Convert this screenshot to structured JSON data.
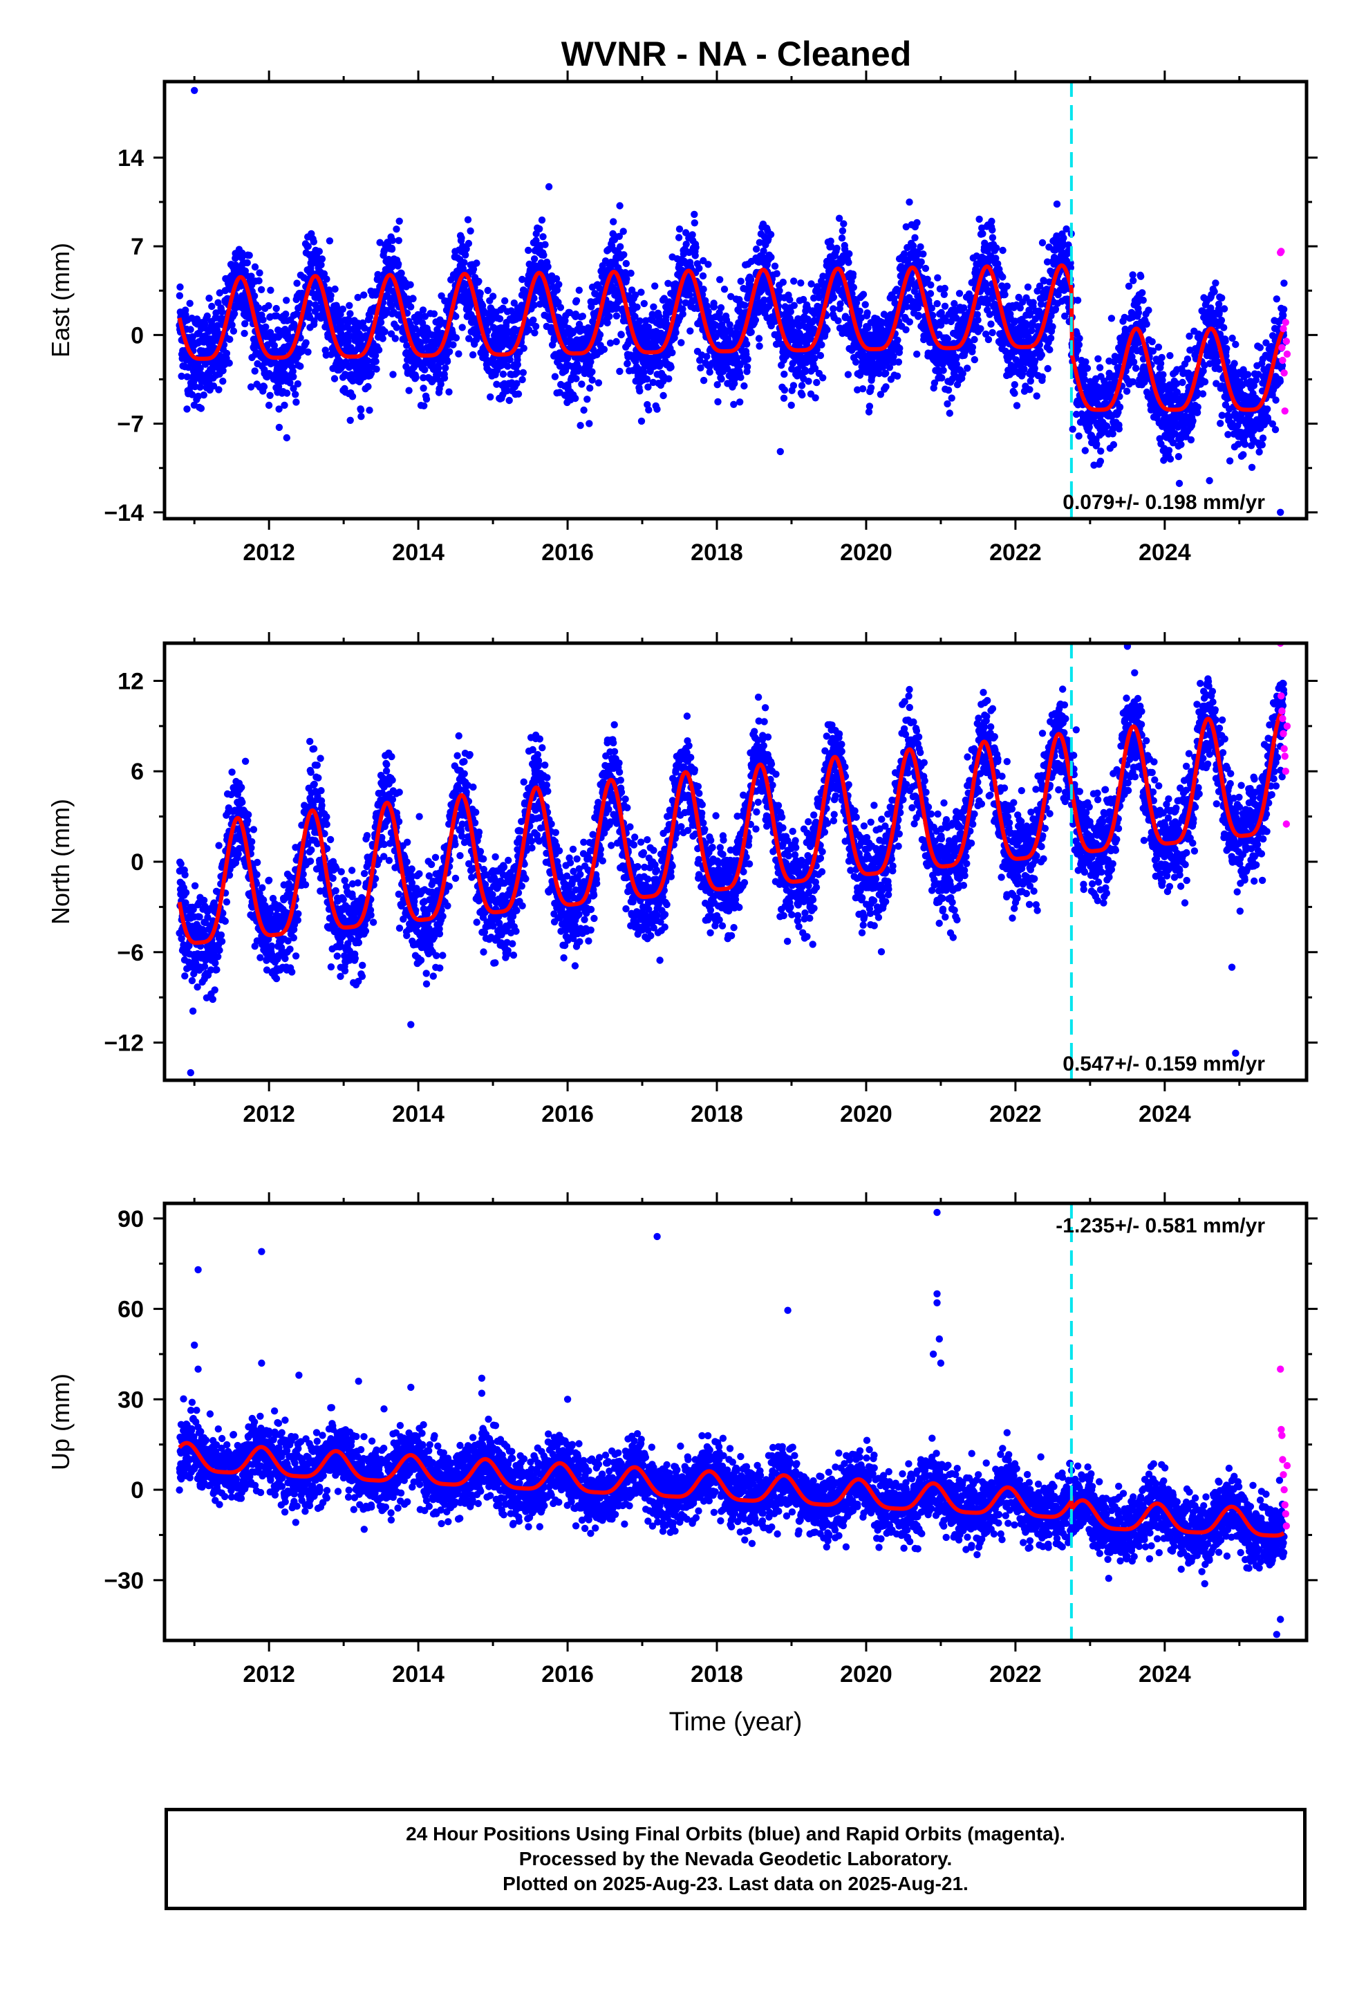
{
  "title": "WVNR  - NA - Cleaned",
  "colors": {
    "final_points": "#0000ff",
    "rapid_points": "#ff00ff",
    "model_line": "#ff0000",
    "break_line": "#00e5ee",
    "frame": "#000000"
  },
  "chart_data": [
    {
      "type": "scatter",
      "panel": "east",
      "ylabel": "East (mm)",
      "xlabel": "",
      "xlim": [
        2010.6,
        2025.9
      ],
      "ylim": [
        -14.5,
        20
      ],
      "x_ticks": [
        "2012",
        "2014",
        "2016",
        "2018",
        "2020",
        "2022",
        "2024"
      ],
      "y_ticks": [
        "14",
        "7",
        "0",
        "-7",
        "-14"
      ],
      "y_tick_values": [
        14,
        7,
        0,
        -7,
        -14
      ],
      "rate_label": "0.079+/- 0.198 mm/yr",
      "rate_label_position": "bottom-right",
      "break_epoch": 2022.75,
      "series": [
        {
          "name": "Final Orbits (blue)",
          "trend": [
            [
              2010.8,
              0.5
            ],
            [
              2022.75,
              1.5
            ],
            [
              2022.76,
              -3.5
            ],
            [
              2025.6,
              -3.5
            ]
          ],
          "seasonal_amplitude": 3.2,
          "seasonal_peak_fraction": 0.62,
          "scatter_sd": 1.9
        },
        {
          "name": "Rapid Orbits (magenta)",
          "x_range": [
            2025.55,
            2025.64
          ],
          "values": [
            6.5,
            6.6,
            -1.0,
            -2.0,
            0.5,
            -3.0,
            -6.0,
            1.0,
            -0.5,
            -1.5
          ]
        }
      ],
      "outliers": [
        [
          2011.0,
          19.3
        ],
        [
          2015.75,
          11.7
        ],
        [
          2016.7,
          10.2
        ],
        [
          2018.85,
          -9.2
        ],
        [
          2024.6,
          -11.5
        ],
        [
          2025.55,
          -14.0
        ]
      ]
    },
    {
      "type": "scatter",
      "panel": "north",
      "ylabel": "North (mm)",
      "xlabel": "",
      "xlim": [
        2010.6,
        2025.9
      ],
      "ylim": [
        -14.5,
        14.5
      ],
      "x_ticks": [
        "2012",
        "2014",
        "2016",
        "2018",
        "2020",
        "2022",
        "2024"
      ],
      "y_ticks": [
        "12",
        "6",
        "0",
        "-6",
        "-12"
      ],
      "y_tick_values": [
        12,
        6,
        0,
        -6,
        -12
      ],
      "rate_label": "0.547+/- 0.159 mm/yr",
      "rate_label_position": "bottom-right",
      "break_epoch": 2022.75,
      "series": [
        {
          "name": "Final Orbits (blue)",
          "trend": [
            [
              2010.8,
              -2.5
            ],
            [
              2025.6,
              5.0
            ]
          ],
          "seasonal_amplitude": 4.0,
          "seasonal_peak_fraction": 0.58,
          "scatter_sd": 1.6
        },
        {
          "name": "Rapid Orbits (magenta)",
          "x_range": [
            2025.55,
            2025.64
          ],
          "values": [
            14.5,
            11.0,
            10.0,
            9.5,
            8.5,
            7.5,
            7.0,
            6.0,
            2.5,
            9.0
          ]
        }
      ],
      "outliers": [
        [
          2010.95,
          -14.0
        ],
        [
          2013.9,
          -10.8
        ],
        [
          2023.5,
          14.3
        ],
        [
          2024.95,
          -12.7
        ],
        [
          2024.9,
          -7.0
        ]
      ]
    },
    {
      "type": "scatter",
      "panel": "up",
      "ylabel": "Up (mm)",
      "xlabel": "Time (year)",
      "xlim": [
        2010.6,
        2025.9
      ],
      "ylim": [
        -50,
        95
      ],
      "x_ticks": [
        "2012",
        "2014",
        "2016",
        "2018",
        "2020",
        "2022",
        "2024"
      ],
      "y_ticks": [
        "90",
        "60",
        "30",
        "0",
        "-30"
      ],
      "y_tick_values": [
        90,
        60,
        30,
        0,
        -30
      ],
      "rate_label": "-1.235+/- 0.581 mm/yr",
      "rate_label_position": "top-right",
      "break_epoch": 2022.75,
      "series": [
        {
          "name": "Final Orbits (blue)",
          "trend": [
            [
              2010.8,
              10.0
            ],
            [
              2022.75,
              -6.0
            ],
            [
              2022.76,
              -9.0
            ],
            [
              2025.6,
              -12.0
            ]
          ],
          "seasonal_amplitude": 4.5,
          "seasonal_peak_fraction": 0.9,
          "scatter_sd": 5.5
        },
        {
          "name": "Rapid Orbits (magenta)",
          "x_range": [
            2025.55,
            2025.64
          ],
          "values": [
            40.0,
            20.0,
            18.0,
            10.0,
            5.0,
            0.0,
            -5.0,
            -8.0,
            -12.0,
            8.0
          ]
        }
      ],
      "outliers": [
        [
          2011.05,
          73.0
        ],
        [
          2011.9,
          79.0
        ],
        [
          2017.2,
          84.0
        ],
        [
          2018.95,
          59.5
        ],
        [
          2020.95,
          92.0
        ],
        [
          2020.95,
          65.0
        ],
        [
          2020.95,
          62.0
        ],
        [
          2020.98,
          50.0
        ],
        [
          2021.0,
          42.0
        ],
        [
          2011.0,
          48.0
        ],
        [
          2011.05,
          40.0
        ],
        [
          2011.9,
          42.0
        ],
        [
          2012.4,
          38.0
        ],
        [
          2013.2,
          36.0
        ],
        [
          2013.9,
          34.0
        ],
        [
          2014.85,
          37.0
        ],
        [
          2014.85,
          32.0
        ],
        [
          2016.0,
          30.0
        ],
        [
          2020.9,
          45.0
        ],
        [
          2025.5,
          -48.0
        ],
        [
          2025.55,
          -43.0
        ]
      ]
    }
  ],
  "footer": {
    "line1": "24 Hour Positions Using Final Orbits (blue) and Rapid Orbits (magenta).",
    "line2": "Processed by the Nevada Geodetic Laboratory.",
    "line3": "Plotted on 2025-Aug-23. Last data on 2025-Aug-21."
  }
}
